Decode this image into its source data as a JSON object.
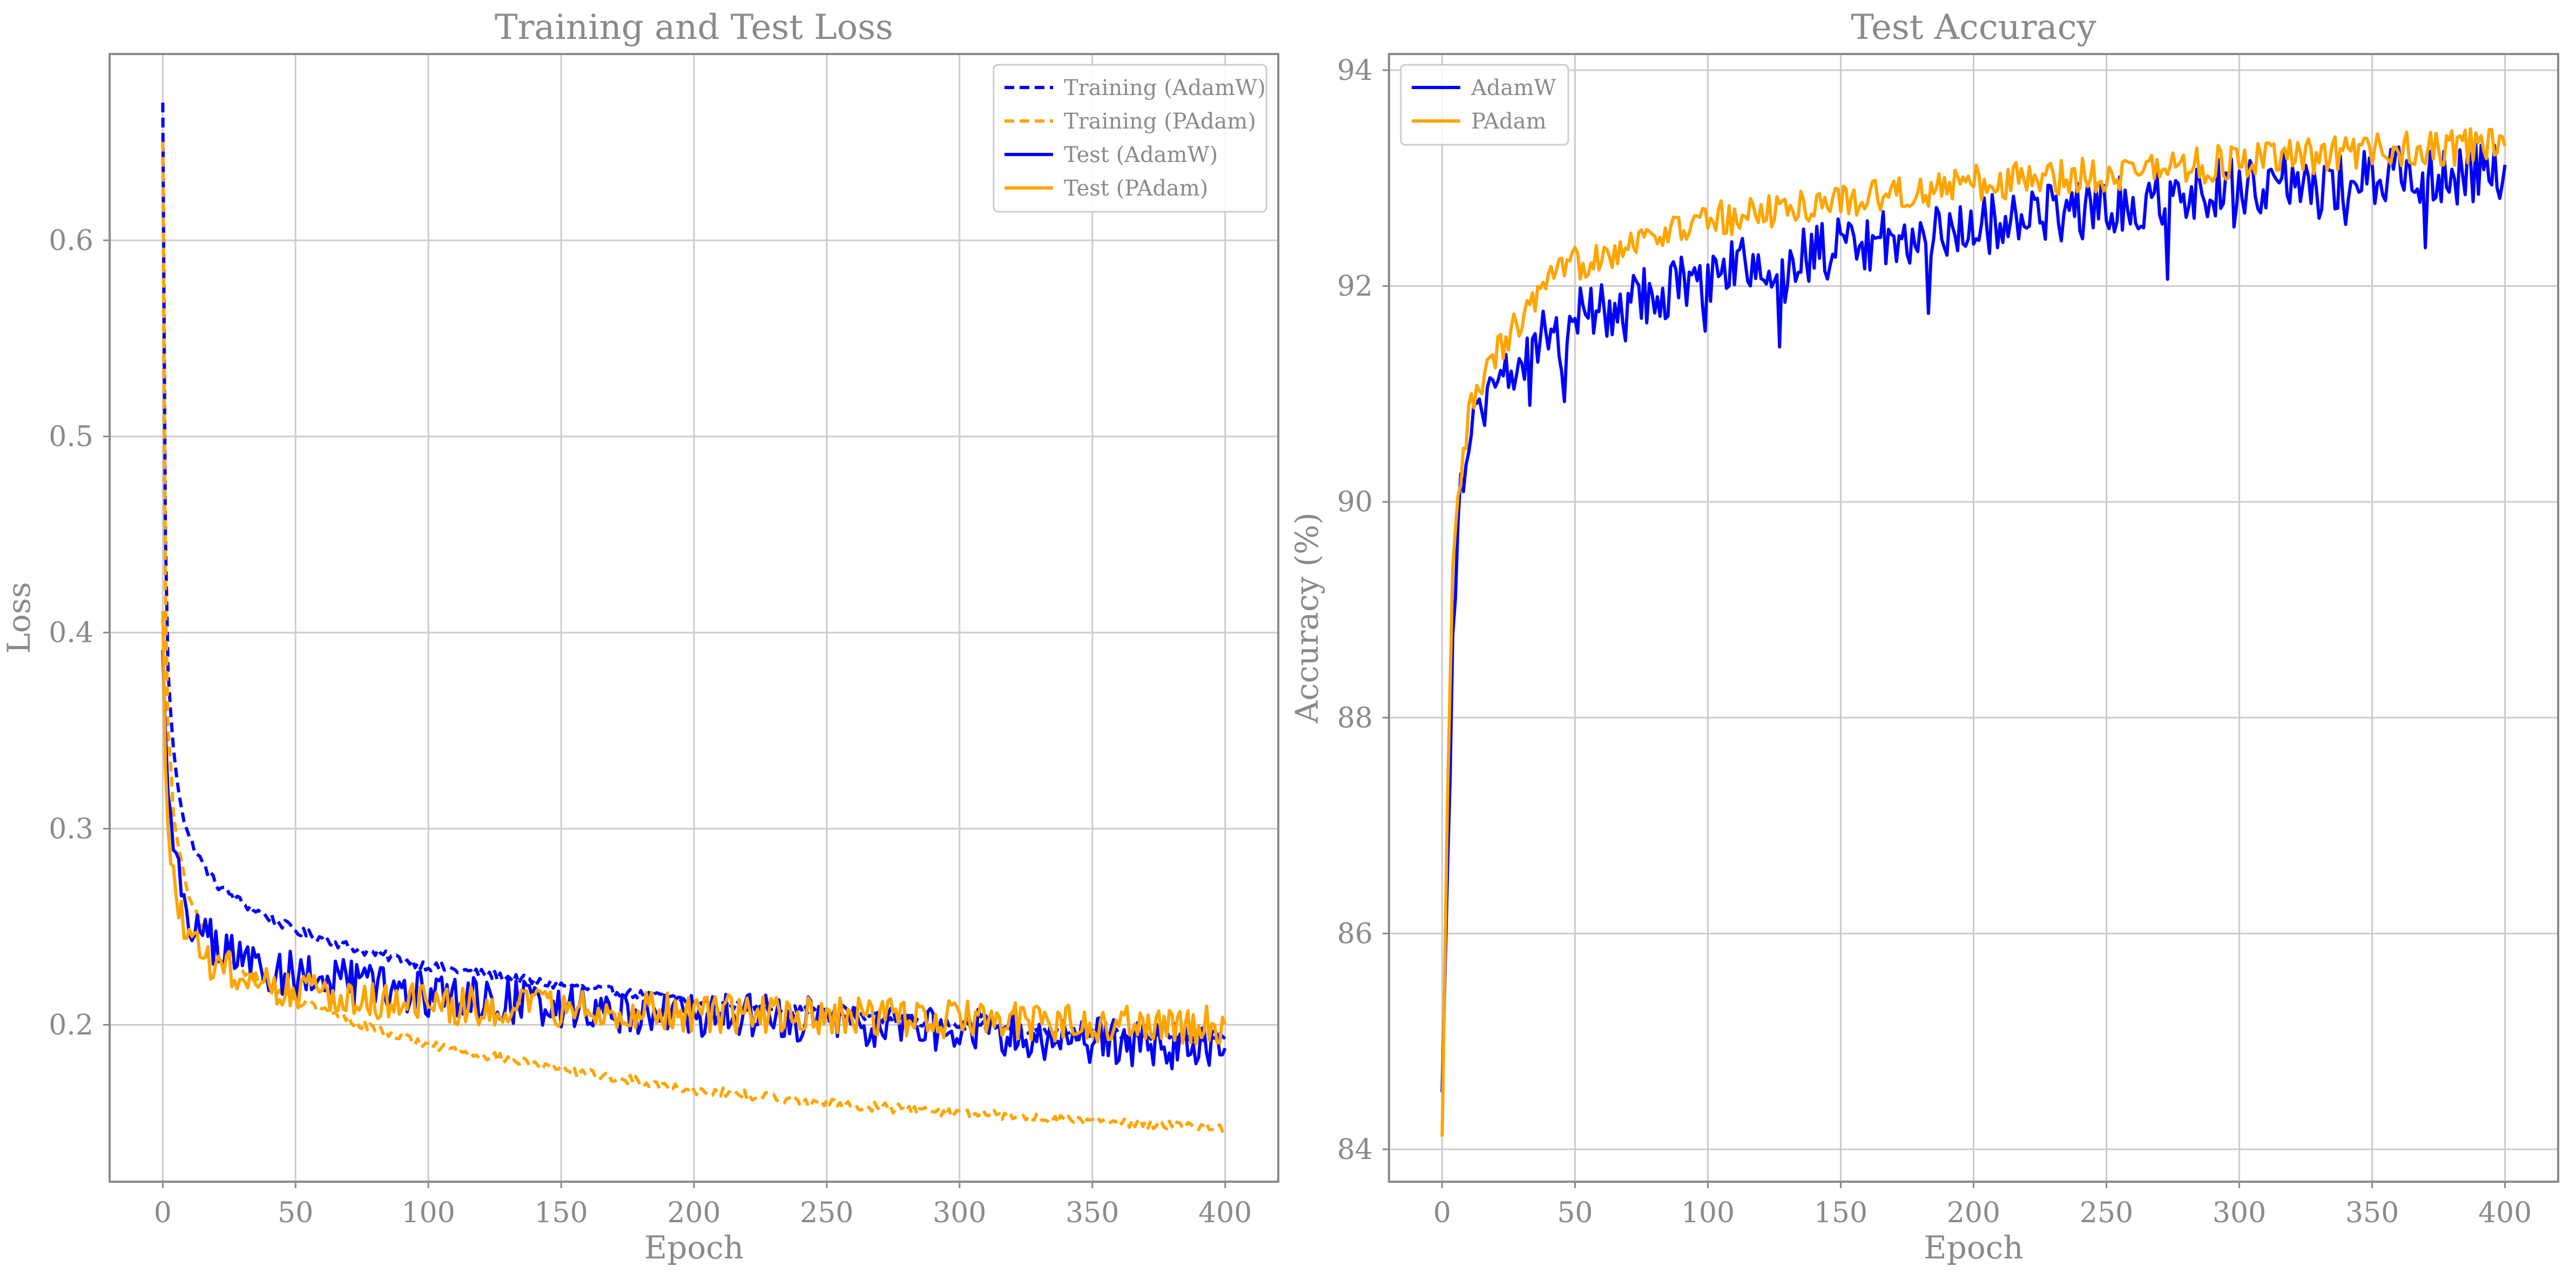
{
  "colors": {
    "adamw": "#0000ff",
    "padam": "#ffa500",
    "grid": "#cccccc",
    "text": "#8a8a8a"
  },
  "chart_data": [
    {
      "type": "line",
      "title": "Training and Test Loss",
      "xlabel": "Epoch",
      "ylabel": "Loss",
      "xlim": [
        -20,
        420
      ],
      "ylim": [
        0.12,
        0.695
      ],
      "xticks": [
        0,
        50,
        100,
        150,
        200,
        250,
        300,
        350,
        400
      ],
      "yticks": [
        0.2,
        0.3,
        0.4,
        0.5,
        0.6
      ],
      "grid": true,
      "legend": "top-right",
      "series": [
        {
          "name": "Training (AdamW)",
          "color": "#0000ff",
          "style": "dashed",
          "noise": 0.0025,
          "x": [
            0,
            1,
            2,
            4,
            6,
            8,
            10,
            15,
            20,
            30,
            40,
            50,
            75,
            100,
            150,
            200,
            250,
            300,
            350,
            400
          ],
          "y": [
            0.67,
            0.45,
            0.38,
            0.34,
            0.32,
            0.305,
            0.295,
            0.282,
            0.272,
            0.262,
            0.255,
            0.248,
            0.238,
            0.23,
            0.22,
            0.212,
            0.206,
            0.2,
            0.196,
            0.193
          ]
        },
        {
          "name": "Training (PAdam)",
          "color": "#ffa500",
          "style": "dashed",
          "noise": 0.0025,
          "x": [
            0,
            1,
            2,
            4,
            6,
            8,
            10,
            15,
            20,
            30,
            40,
            50,
            75,
            100,
            150,
            200,
            250,
            300,
            350,
            400
          ],
          "y": [
            0.65,
            0.42,
            0.35,
            0.31,
            0.29,
            0.275,
            0.265,
            0.25,
            0.24,
            0.228,
            0.22,
            0.213,
            0.2,
            0.19,
            0.177,
            0.167,
            0.16,
            0.155,
            0.151,
            0.148
          ]
        },
        {
          "name": "Test (AdamW)",
          "color": "#0000ff",
          "style": "solid",
          "noise": 0.012,
          "x": [
            0,
            1,
            2,
            4,
            6,
            8,
            10,
            15,
            20,
            30,
            50,
            75,
            100,
            150,
            200,
            250,
            300,
            350,
            400
          ],
          "y": [
            0.39,
            0.35,
            0.32,
            0.29,
            0.275,
            0.265,
            0.255,
            0.245,
            0.24,
            0.232,
            0.225,
            0.22,
            0.215,
            0.21,
            0.205,
            0.202,
            0.198,
            0.192,
            0.188
          ]
        },
        {
          "name": "Test (PAdam)",
          "color": "#ffa500",
          "style": "solid",
          "noise": 0.01,
          "x": [
            0,
            1,
            2,
            4,
            6,
            8,
            10,
            15,
            20,
            30,
            50,
            75,
            100,
            150,
            200,
            250,
            300,
            350,
            400
          ],
          "y": [
            0.41,
            0.33,
            0.3,
            0.275,
            0.26,
            0.25,
            0.242,
            0.235,
            0.23,
            0.225,
            0.218,
            0.214,
            0.21,
            0.208,
            0.206,
            0.205,
            0.203,
            0.201,
            0.2
          ]
        }
      ]
    },
    {
      "type": "line",
      "title": "Test Accuracy",
      "xlabel": "Epoch",
      "ylabel": "Accuracy (%)",
      "xlim": [
        -20,
        420
      ],
      "ylim": [
        83.7,
        94.15
      ],
      "xticks": [
        0,
        50,
        100,
        150,
        200,
        250,
        300,
        350,
        400
      ],
      "yticks": [
        84,
        86,
        88,
        90,
        92,
        94
      ],
      "grid": true,
      "legend": "top-left",
      "series": [
        {
          "name": "AdamW",
          "color": "#0000ff",
          "style": "solid",
          "noise": 0.28,
          "x": [
            0,
            2,
            4,
            6,
            8,
            10,
            15,
            20,
            30,
            40,
            50,
            75,
            100,
            150,
            200,
            250,
            300,
            350,
            400
          ],
          "y": [
            84.5,
            86.6,
            88.8,
            89.9,
            90.3,
            90.7,
            90.95,
            91.1,
            91.35,
            91.55,
            91.7,
            91.9,
            92.1,
            92.35,
            92.55,
            92.75,
            92.95,
            93.0,
            93.05
          ]
        },
        {
          "name": "PAdam",
          "color": "#ffa500",
          "style": "solid",
          "noise": 0.17,
          "x": [
            0,
            2,
            4,
            6,
            8,
            10,
            15,
            20,
            30,
            40,
            50,
            75,
            100,
            150,
            200,
            250,
            300,
            350,
            400
          ],
          "y": [
            84.1,
            87.2,
            89.3,
            90.0,
            90.4,
            90.8,
            91.1,
            91.35,
            91.7,
            92.0,
            92.2,
            92.45,
            92.6,
            92.8,
            92.95,
            93.05,
            93.15,
            93.25,
            93.3
          ]
        }
      ]
    }
  ]
}
